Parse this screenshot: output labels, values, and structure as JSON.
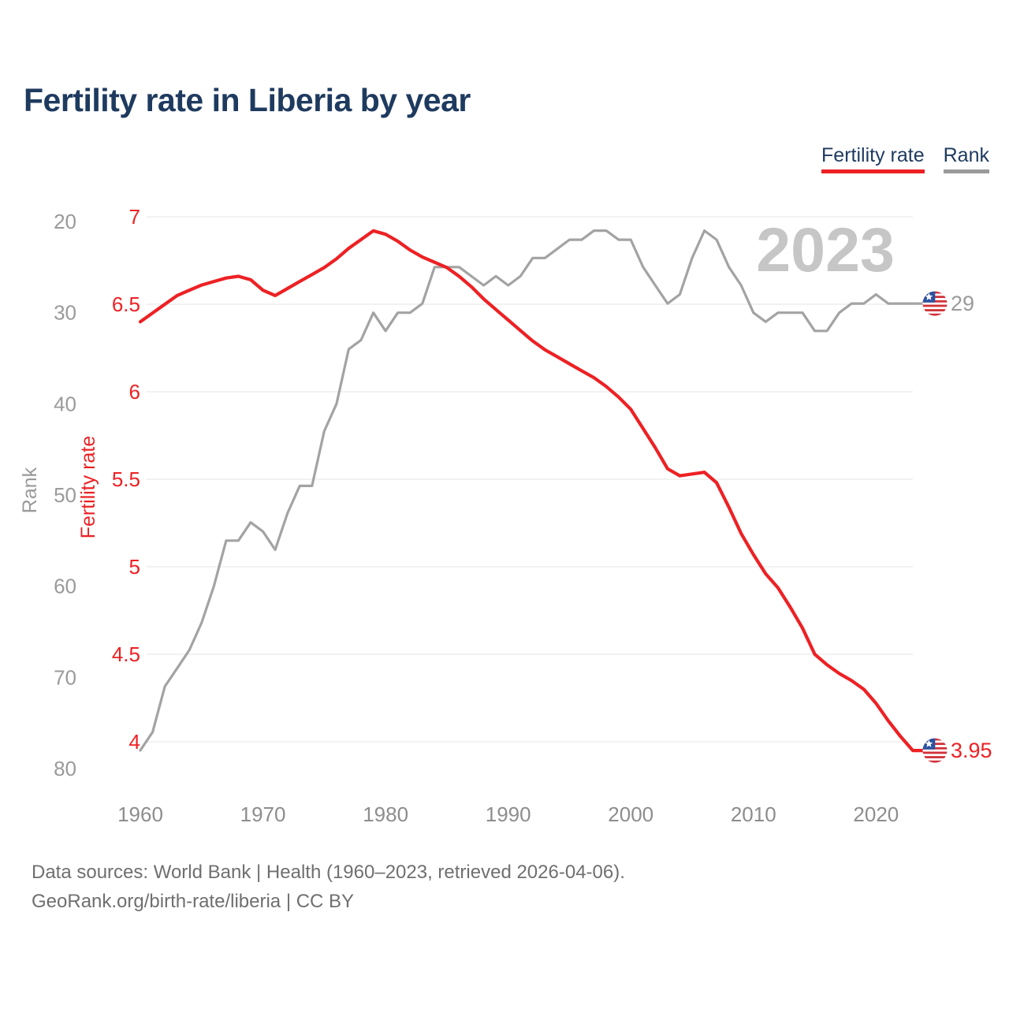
{
  "title": "Fertility rate in Liberia by year",
  "watermark": "2023",
  "legend": {
    "fertility_label": "Fertility rate",
    "rank_label": "Rank"
  },
  "axes": {
    "x": {
      "ticks": [
        1960,
        1970,
        1980,
        1990,
        2000,
        2010,
        2020
      ]
    },
    "fertility": {
      "label": "Fertility rate",
      "ticks": [
        7,
        6.5,
        6,
        5.5,
        5,
        4.5,
        4
      ],
      "range": [
        4,
        7
      ]
    },
    "rank": {
      "label": "Rank",
      "ticks": [
        20,
        30,
        40,
        50,
        60,
        70,
        80
      ],
      "range": [
        20,
        80
      ]
    }
  },
  "end_labels": {
    "fertility": "3.95",
    "rank": "29"
  },
  "footer": {
    "line1": "Data sources: World Bank | Health (1960–2023, retrieved 2026-04-06).",
    "line2": "GeoRank.org/birth-rate/liberia | CC BY"
  },
  "colors": {
    "accent_red": "#ed2124",
    "line_gray": "#a3a3a3",
    "rank_tick_gray": "#9a9a9a",
    "x_tick_gray": "#8d8d8d",
    "grid": "#eaeaea",
    "watermark": "#c6c6c6",
    "navy": "#1e3a5f",
    "footer_gray": "#6f6f6f",
    "flag_red": "#d13239",
    "flag_blue": "#2a52a0"
  },
  "chart_data": {
    "type": "line",
    "title": "Fertility rate in Liberia by year",
    "xlabel": "",
    "ylabel_left_outer": "Rank",
    "ylabel_left_inner": "Fertility rate",
    "grid": "horizontal",
    "legend_position": "top-right",
    "x_years": [
      1960,
      1961,
      1962,
      1963,
      1964,
      1965,
      1966,
      1967,
      1968,
      1969,
      1970,
      1971,
      1972,
      1973,
      1974,
      1975,
      1976,
      1977,
      1978,
      1979,
      1980,
      1981,
      1982,
      1983,
      1984,
      1985,
      1986,
      1987,
      1988,
      1989,
      1990,
      1991,
      1992,
      1993,
      1994,
      1995,
      1996,
      1997,
      1998,
      1999,
      2000,
      2001,
      2002,
      2003,
      2004,
      2005,
      2006,
      2007,
      2008,
      2009,
      2010,
      2011,
      2012,
      2013,
      2014,
      2015,
      2016,
      2017,
      2018,
      2019,
      2020,
      2021,
      2022,
      2023
    ],
    "series": [
      {
        "name": "Fertility rate",
        "axis": "fertility",
        "axis_range": [
          4,
          7
        ],
        "values": [
          6.4,
          6.45,
          6.5,
          6.55,
          6.58,
          6.61,
          6.63,
          6.65,
          6.66,
          6.64,
          6.58,
          6.55,
          6.59,
          6.63,
          6.67,
          6.71,
          6.76,
          6.82,
          6.87,
          6.92,
          6.9,
          6.86,
          6.81,
          6.77,
          6.74,
          6.71,
          6.66,
          6.6,
          6.53,
          6.47,
          6.41,
          6.35,
          6.29,
          6.24,
          6.2,
          6.16,
          6.12,
          6.08,
          6.03,
          5.97,
          5.9,
          5.79,
          5.68,
          5.56,
          5.52,
          5.53,
          5.54,
          5.48,
          5.34,
          5.19,
          5.07,
          4.96,
          4.88,
          4.77,
          4.65,
          4.5,
          4.44,
          4.39,
          4.35,
          4.3,
          4.22,
          4.12,
          4.03,
          3.95
        ]
      },
      {
        "name": "Rank",
        "axis": "rank",
        "axis_range": [
          20,
          80
        ],
        "axis_inverted": true,
        "values": [
          78,
          76,
          71,
          69,
          67,
          64,
          60,
          55,
          55,
          53,
          54,
          56,
          52,
          49,
          49,
          43,
          40,
          34,
          33,
          30,
          32,
          30,
          30,
          29,
          25,
          25,
          25,
          26,
          27,
          26,
          27,
          26,
          24,
          24,
          23,
          22,
          22,
          21,
          21,
          22,
          22,
          25,
          27,
          29,
          28,
          24,
          21,
          22,
          25,
          27,
          30,
          31,
          30,
          30,
          30,
          32,
          32,
          30,
          29,
          29,
          28,
          29,
          29,
          29
        ]
      }
    ],
    "final_year": 2023,
    "final_values": {
      "fertility": 3.95,
      "rank": 29
    }
  }
}
